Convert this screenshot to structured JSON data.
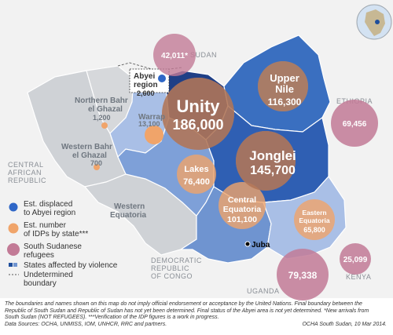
{
  "countries": {
    "sudan": "SUDAN",
    "ethiopia": "ETHIOPIA",
    "car_line1": "CENTRAL",
    "car_line2": "AFRICAN",
    "car_line3": "REPUBLIC",
    "drc_line1": "DEMOCRATIC",
    "drc_line2": "REPUBLIC",
    "drc_line3": "OF CONGO",
    "uganda": "UGANDA",
    "kenya": "KENYA"
  },
  "abyei": {
    "line1": "Abyei",
    "line2": "region",
    "value": "2,600"
  },
  "states": {
    "unity": {
      "name": "Unity",
      "value": "186,000"
    },
    "upper_nile": {
      "line1": "Upper",
      "line2": "Nile",
      "value": "116,300"
    },
    "jonglei": {
      "name": "Jonglei",
      "value": "145,700"
    },
    "lakes": {
      "name": "Lakes",
      "value": "76,400"
    },
    "central_equatoria": {
      "line1": "Central",
      "line2": "Equatoria",
      "value": "101,100"
    },
    "eastern_equatoria": {
      "line1": "Eastern",
      "line2": "Equatoria",
      "value": "65,800"
    },
    "warrap": {
      "name": "Warrap",
      "value": "13,100"
    },
    "nbeg": {
      "line1": "Northern Bahr",
      "line2": "el Ghazal",
      "value": "1,200"
    },
    "wbeg": {
      "line1": "Western Bahr",
      "line2": "el Ghazal",
      "value": "700"
    },
    "western_equatoria": {
      "line1": "Western",
      "line2": "Equatoria"
    }
  },
  "refugees": {
    "sudan": "42,011*",
    "ethiopia": "69,456",
    "uganda": "79,338",
    "kenya": "25,099"
  },
  "city": "Juba",
  "legend": {
    "abyei_line1": "Est. displaced",
    "abyei_line2": "to Abyei region",
    "idps_line1": "Est. number",
    "idps_line2": "of IDPs by state***",
    "refugees_line1": "South Sudanese",
    "refugees_line2": "refugees",
    "violence": "States affected by violence",
    "boundary_line1": "Undetermined",
    "boundary_line2": "boundary"
  },
  "footer": {
    "line1": "The boundaries and names shown on this map do not imply official endorsement or acceptance by the United Nations. Final boundary between the",
    "line2": "Republic of South Sudan and Republic of Sudan has not yet been determined. Final status of the Abyei area is not yet determined. *New arrivals from",
    "line3": "South Sudan (NOT REFUGEES). ***Verification of the IDP figures is a work in progress.",
    "line4": "Data Sources: OCHA, UNMISS, IOM, UNHCR, RRC and partners.",
    "credit": "OCHA South Sudan, 10 Mar 2014."
  },
  "colors": {
    "dark_blue": "#1f4e9c",
    "mid_blue": "#3a6fc0",
    "light_blue": "#6f94d0",
    "pale_blue": "#a9bfe6",
    "grey_state": "#cfd2d6",
    "idp_orange": "#f0a46a",
    "refugee_mauve": "#c27a96",
    "abyei_blue": "#2f67c7"
  }
}
